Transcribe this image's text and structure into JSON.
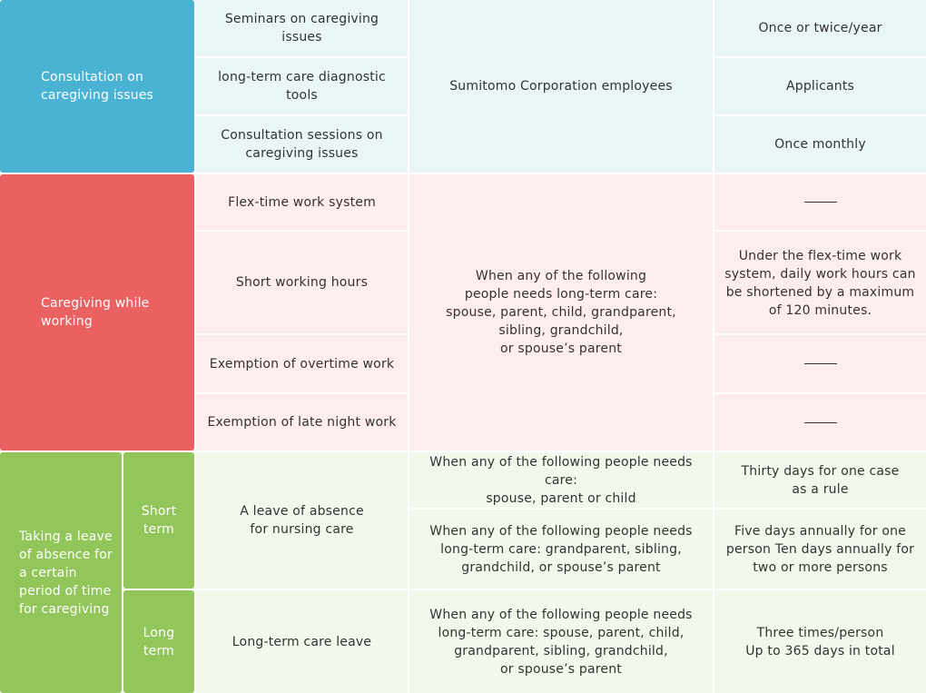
{
  "consultation": {
    "category": "Consultation on\ncaregiving issues",
    "target": "Sumitomo Corporation employees",
    "rows": [
      {
        "program": "Seminars on caregiving issues",
        "detail": "Once or twice/year"
      },
      {
        "program": "long-term care diagnostic tools",
        "detail": "Applicants"
      },
      {
        "program": "Consultation sessions on\ncaregiving issues",
        "detail": "Once monthly"
      }
    ]
  },
  "working": {
    "category": "Caregiving while\nworking",
    "target": "When any of the following\npeople needs long-term care:\nspouse, parent, child, grandparent,\nsibling, grandchild,\nor spouse’s parent",
    "rows": [
      {
        "program": "Flex-time work system",
        "detail": "—"
      },
      {
        "program": "Short working hours",
        "detail": "Under the flex-time work\nsystem, daily work hours can\nbe shortened by a maximum\nof 120 minutes."
      },
      {
        "program": "Exemption of overtime work",
        "detail": "—"
      },
      {
        "program": "Exemption of late night work",
        "detail": "—"
      }
    ]
  },
  "leave": {
    "category": "Taking a leave\nof absence for\na certain\nperiod of time\nfor caregiving",
    "short_term": {
      "label": "Short\nterm",
      "program": "A leave of absence\nfor nursing care",
      "rows": [
        {
          "target": "When any of the following people needs care:\nspouse, parent or child",
          "detail": "Thirty days for one case\nas a rule"
        },
        {
          "target": "When any of the following people needs\nlong-term care: grandparent, sibling,\ngrandchild, or spouse’s parent",
          "detail": "Five days annually for one\nperson Ten days annually for\ntwo or more persons"
        }
      ]
    },
    "long_term": {
      "label": "Long\nterm",
      "program": "Long-term care leave",
      "target": "When any of the following people needs\nlong-term care: spouse, parent, child,\ngrandparent, sibling, grandchild,\nor spouse’s parent",
      "detail": "Three times/person\nUp to 365 days in total"
    }
  },
  "colors": {
    "blue": "#4ab2d3",
    "red": "#e96161",
    "green": "#92c65a",
    "light_blue": "#eaf5f8",
    "light_red": "#fdeded",
    "light_green": "#f1f8ec"
  }
}
